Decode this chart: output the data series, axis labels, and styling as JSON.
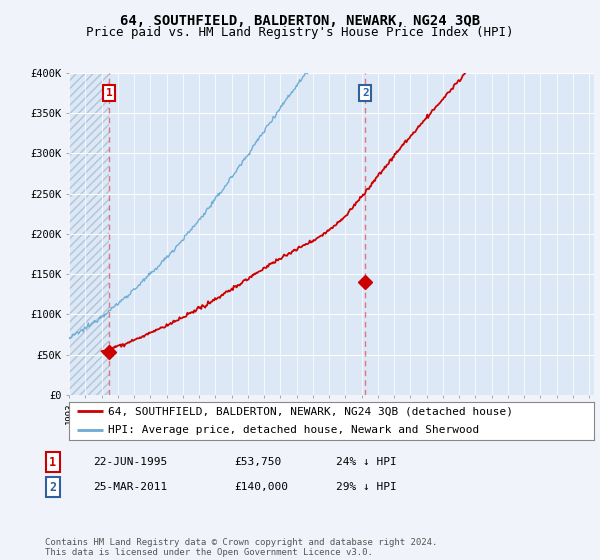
{
  "title": "64, SOUTHFIELD, BALDERTON, NEWARK, NG24 3QB",
  "subtitle": "Price paid vs. HM Land Registry's House Price Index (HPI)",
  "ylim": [
    0,
    400000
  ],
  "yticks": [
    0,
    50000,
    100000,
    150000,
    200000,
    250000,
    300000,
    350000,
    400000
  ],
  "ytick_labels": [
    "£0",
    "£50K",
    "£100K",
    "£150K",
    "£200K",
    "£250K",
    "£300K",
    "£350K",
    "£400K"
  ],
  "xlim_start": 1993,
  "xlim_end": 2025.3,
  "background_color": "#f0f4fa",
  "plot_bg_color": "#dce8f5",
  "hatch_bg_color": "#c8d8eb",
  "grid_color": "#ffffff",
  "red_line_color": "#cc0000",
  "blue_line_color": "#6aaad4",
  "vline_color": "#e06070",
  "sale1_year": 1995.47,
  "sale1_price": 53750,
  "sale1_label": "1",
  "sale2_year": 2011.23,
  "sale2_price": 140000,
  "sale2_label": "2",
  "legend_entry1": "64, SOUTHFIELD, BALDERTON, NEWARK, NG24 3QB (detached house)",
  "legend_entry2": "HPI: Average price, detached house, Newark and Sherwood",
  "table_row1": [
    "1",
    "22-JUN-1995",
    "£53,750",
    "24% ↓ HPI"
  ],
  "table_row2": [
    "2",
    "25-MAR-2011",
    "£140,000",
    "29% ↓ HPI"
  ],
  "footer": "Contains HM Land Registry data © Crown copyright and database right 2024.\nThis data is licensed under the Open Government Licence v3.0.",
  "title_fontsize": 10,
  "subtitle_fontsize": 9,
  "tick_fontsize": 7.5,
  "legend_fontsize": 8,
  "table_fontsize": 8,
  "footer_fontsize": 6.5
}
